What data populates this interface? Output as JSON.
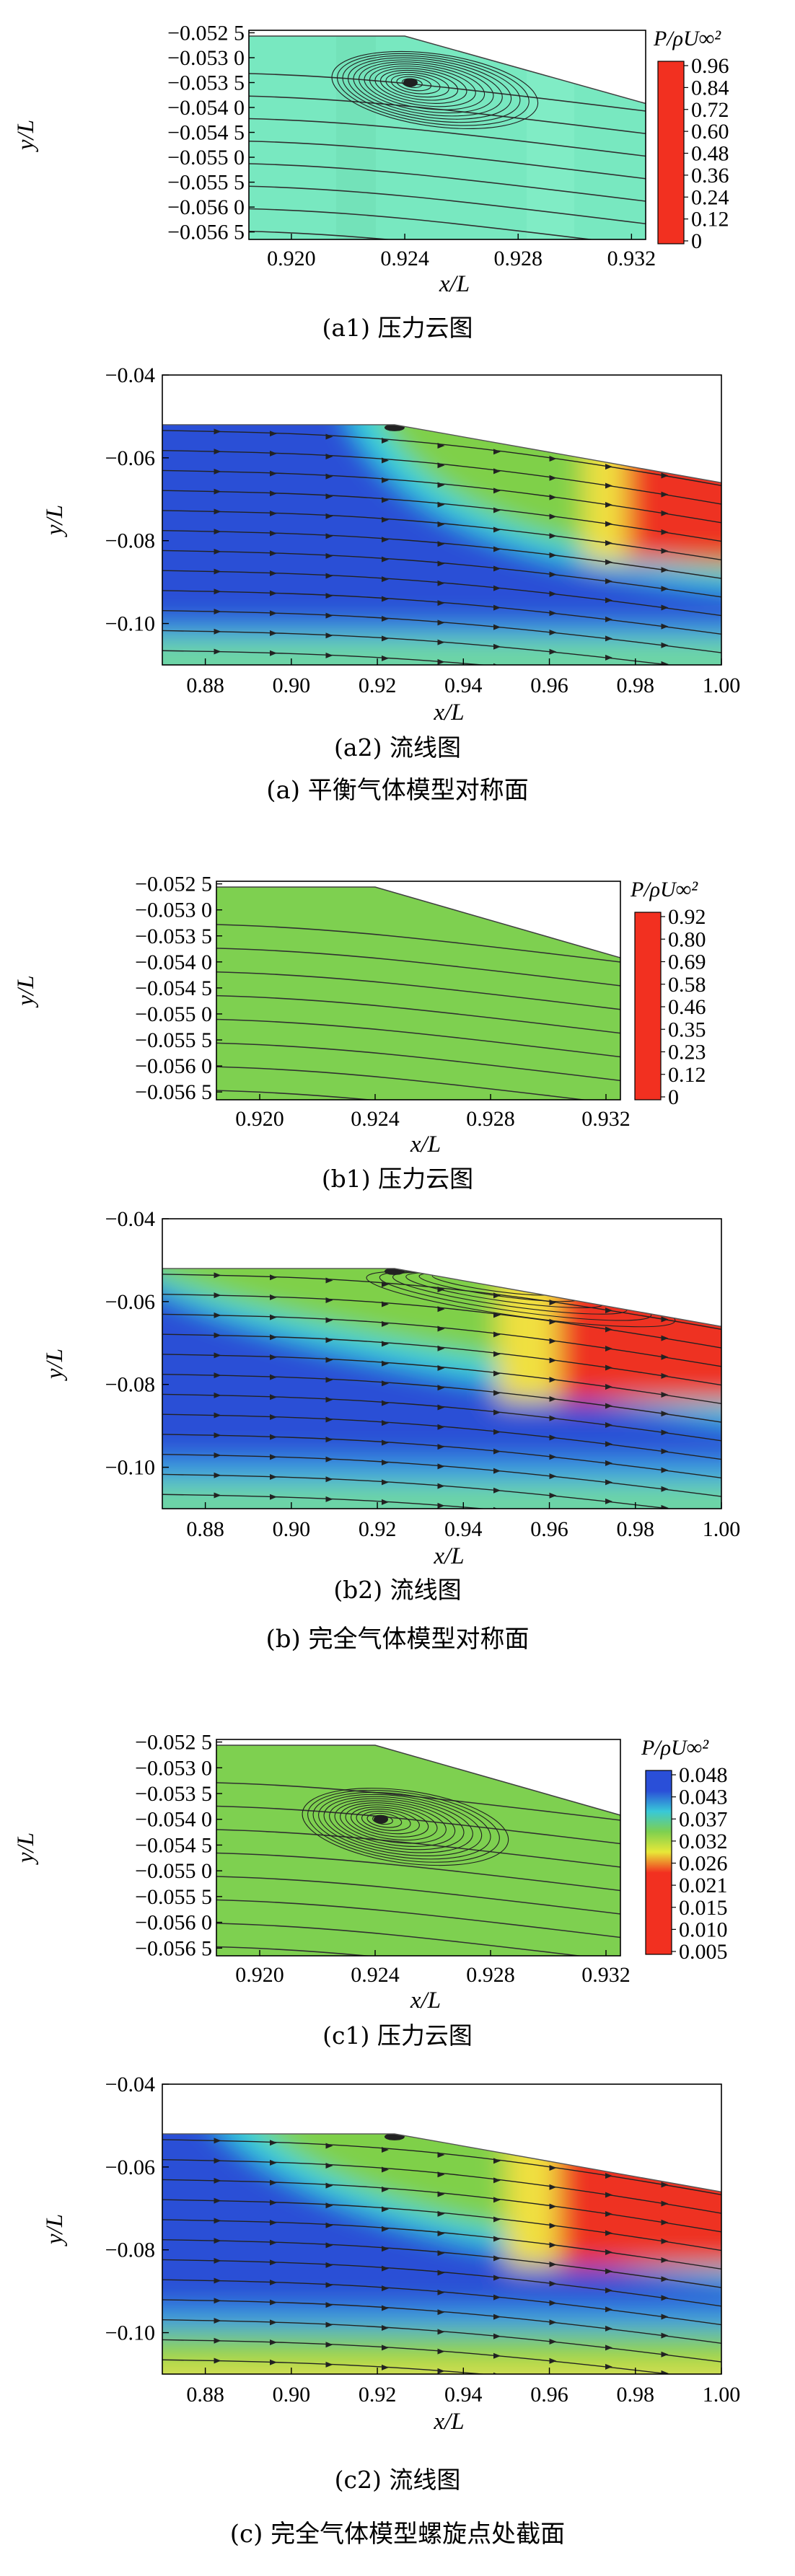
{
  "chart_data": [
    {
      "id": "a1",
      "type": "heatmap",
      "subtype": "pressure contour with streamlines (zoomed)",
      "caption": "(a1) 压力云图",
      "xlabel": "x/L",
      "ylabel": "y/L",
      "xlim": [
        0.9185,
        0.9325
      ],
      "ylim": [
        -0.05665,
        -0.05245
      ],
      "x_ticks": [
        "0.920",
        "0.924",
        "0.928",
        "0.932"
      ],
      "x_tick_values": [
        0.92,
        0.924,
        0.928,
        0.932
      ],
      "y_ticks": [
        "−0.052 5",
        "−0.053 0",
        "−0.053 5",
        "−0.054 0",
        "−0.054 5",
        "−0.055 0",
        "−0.055 5",
        "−0.056 0",
        "−0.056 5"
      ],
      "y_tick_values": [
        -0.0525,
        -0.053,
        -0.0535,
        -0.054,
        -0.0545,
        -0.055,
        -0.0555,
        -0.056,
        -0.0565
      ],
      "body_corner_x": 0.924,
      "vortex_center": [
        0.9242,
        -0.0535
      ],
      "field_color": "#78e8c0",
      "colorbar": {
        "title": "P/ρU∞²",
        "ticks": [
          "0.96",
          "0.84",
          "0.72",
          "0.60",
          "0.48",
          "0.36",
          "0.24",
          "0.12",
          "0"
        ],
        "tick_values": [
          0.96,
          0.84,
          0.72,
          0.6,
          0.48,
          0.36,
          0.24,
          0.12,
          0
        ],
        "colors": [
          "#f23020",
          "#f23020"
        ]
      }
    },
    {
      "id": "a2",
      "type": "heatmap",
      "subtype": "pressure field with streamlines",
      "caption": "(a2) 流线图",
      "xlabel": "x/L",
      "ylabel": "y/L",
      "xlim": [
        0.87,
        1.0
      ],
      "ylim": [
        -0.11,
        -0.04
      ],
      "x_ticks": [
        "0.88",
        "0.90",
        "0.92",
        "0.94",
        "0.96",
        "0.98",
        "1.00"
      ],
      "x_tick_values": [
        0.88,
        0.9,
        0.92,
        0.94,
        0.96,
        0.98,
        1.0
      ],
      "y_ticks": [
        "−0.04",
        "−0.06",
        "−0.08",
        "−0.10"
      ],
      "y_tick_values": [
        -0.04,
        -0.06,
        -0.08,
        -0.1
      ],
      "body_corner_x": 0.924
    },
    {
      "id": "b1",
      "type": "heatmap",
      "subtype": "pressure contour with streamlines (zoomed)",
      "caption": "(b1) 压力云图",
      "xlabel": "x/L",
      "ylabel": "y/L",
      "xlim": [
        0.9185,
        0.9325
      ],
      "ylim": [
        -0.05665,
        -0.05245
      ],
      "x_ticks": [
        "0.920",
        "0.924",
        "0.928",
        "0.932"
      ],
      "x_tick_values": [
        0.92,
        0.924,
        0.928,
        0.932
      ],
      "y_ticks": [
        "−0.052 5",
        "−0.053 0",
        "−0.053 5",
        "−0.054 0",
        "−0.054 5",
        "−0.055 0",
        "−0.055 5",
        "−0.056 0",
        "−0.056 5"
      ],
      "y_tick_values": [
        -0.0525,
        -0.053,
        -0.0535,
        -0.054,
        -0.0545,
        -0.055,
        -0.0555,
        -0.056,
        -0.0565
      ],
      "body_corner_x": 0.924,
      "field_color": "#7ed050",
      "colorbar": {
        "title": "P/ρU∞²",
        "ticks": [
          "0.92",
          "0.80",
          "0.69",
          "0.58",
          "0.46",
          "0.35",
          "0.23",
          "0.12",
          "0"
        ],
        "tick_values": [
          0.92,
          0.8,
          0.69,
          0.58,
          0.46,
          0.35,
          0.23,
          0.12,
          0
        ],
        "colors": [
          "#f23020",
          "#f23020"
        ]
      }
    },
    {
      "id": "b2",
      "type": "heatmap",
      "subtype": "pressure field with streamlines",
      "caption": "(b2) 流线图",
      "xlabel": "x/L",
      "ylabel": "y/L",
      "xlim": [
        0.87,
        1.0
      ],
      "ylim": [
        -0.11,
        -0.04
      ],
      "x_ticks": [
        "0.88",
        "0.90",
        "0.92",
        "0.94",
        "0.96",
        "0.98",
        "1.00"
      ],
      "x_tick_values": [
        0.88,
        0.9,
        0.92,
        0.94,
        0.96,
        0.98,
        1.0
      ],
      "y_ticks": [
        "−0.04",
        "−0.06",
        "−0.08",
        "−0.10"
      ],
      "y_tick_values": [
        -0.04,
        -0.06,
        -0.08,
        -0.1
      ],
      "body_corner_x": 0.924
    },
    {
      "id": "c1",
      "type": "heatmap",
      "subtype": "pressure contour with streamlines (zoomed)",
      "caption": "(c1) 压力云图",
      "xlabel": "x/L",
      "ylabel": "y/L",
      "xlim": [
        0.9185,
        0.9325
      ],
      "ylim": [
        -0.05665,
        -0.05245
      ],
      "x_ticks": [
        "0.920",
        "0.924",
        "0.928",
        "0.932"
      ],
      "x_tick_values": [
        0.92,
        0.924,
        0.928,
        0.932
      ],
      "y_ticks": [
        "−0.052 5",
        "−0.053 0",
        "−0.053 5",
        "−0.054 0",
        "−0.054 5",
        "−0.055 0",
        "−0.055 5",
        "−0.056 0",
        "−0.056 5"
      ],
      "y_tick_values": [
        -0.0525,
        -0.053,
        -0.0535,
        -0.054,
        -0.0545,
        -0.055,
        -0.0555,
        -0.056,
        -0.0565
      ],
      "body_corner_x": 0.924,
      "vortex_center": [
        0.9242,
        -0.054
      ],
      "field_color": "#7ed050",
      "colorbar": {
        "title": "P/ρU∞²",
        "ticks": [
          "0.048",
          "0.043",
          "0.037",
          "0.032",
          "0.026",
          "0.021",
          "0.015",
          "0.010",
          "0.005"
        ],
        "tick_values": [
          0.048,
          0.043,
          0.037,
          0.032,
          0.026,
          0.021,
          0.015,
          0.01,
          0.005
        ],
        "colors": [
          "#2a4fd8",
          "#2a4fd8",
          "#38c8d8",
          "#7ed050",
          "#e8e838",
          "#f23020",
          "#f23020",
          "#f23020",
          "#f23020",
          "#f23020"
        ]
      }
    },
    {
      "id": "c2",
      "type": "heatmap",
      "subtype": "pressure field with streamlines",
      "caption": "(c2) 流线图",
      "xlabel": "x/L",
      "ylabel": "y/L",
      "xlim": [
        0.87,
        1.0
      ],
      "ylim": [
        -0.11,
        -0.04
      ],
      "x_ticks": [
        "0.88",
        "0.90",
        "0.92",
        "0.94",
        "0.96",
        "0.98",
        "1.00"
      ],
      "x_tick_values": [
        0.88,
        0.9,
        0.92,
        0.94,
        0.96,
        0.98,
        1.0
      ],
      "y_ticks": [
        "−0.04",
        "−0.06",
        "−0.08",
        "−0.10"
      ],
      "y_tick_values": [
        -0.04,
        -0.06,
        -0.08,
        -0.1
      ],
      "body_corner_x": 0.924
    }
  ],
  "group_captions": {
    "a": "(a) 平衡气体模型对称面",
    "b": "(b) 完全气体模型对称面",
    "c": "(c) 完全气体模型螺旋点处截面"
  }
}
